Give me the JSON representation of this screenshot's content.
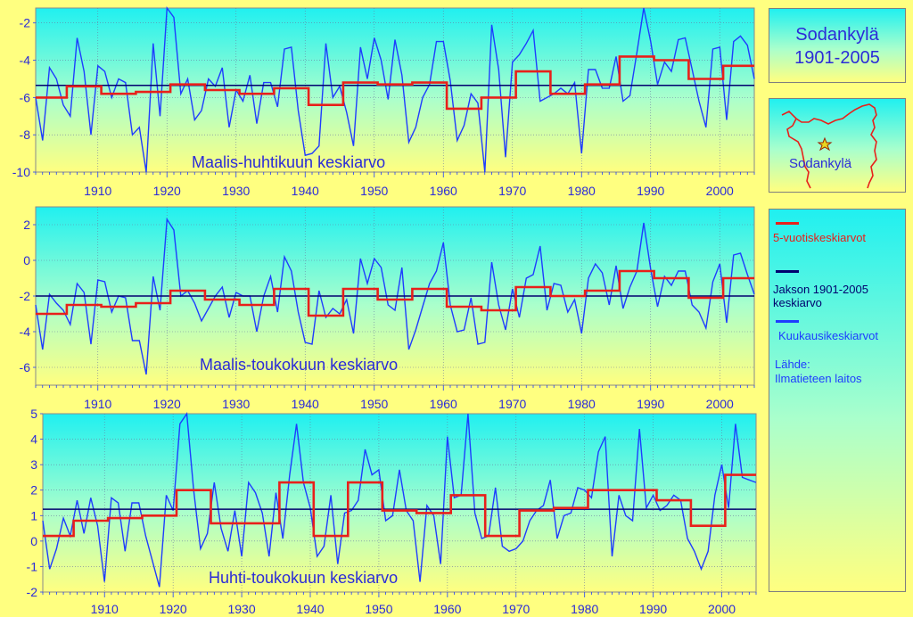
{
  "side": {
    "title_line1": "Sodankylä",
    "title_line2": "1901-2005",
    "map_label": "Sodankylä",
    "legend": [
      {
        "label": "5-vuotiskeskiarvot",
        "color": "#e8201a"
      },
      {
        "label": "Jakson  1901-2005 keskiarvo",
        "color": "#00006e"
      },
      {
        "label": "Kuukausikeskiarvot",
        "color": "#1e3cff"
      }
    ],
    "source_label": "Lähde:",
    "source_value": "Ilmatieteen laitos"
  },
  "colors": {
    "monthly": "#1e3cff",
    "five_year": "#e8201a",
    "period_mean": "#00006e",
    "label_text": "#2b2bd8"
  },
  "chart_data": [
    {
      "type": "line",
      "title": "Maalis-huhtikuun keskiarvo",
      "x": [
        1901,
        1902,
        1903,
        1904,
        1905,
        1906,
        1907,
        1908,
        1909,
        1910,
        1911,
        1912,
        1913,
        1914,
        1915,
        1916,
        1917,
        1918,
        1919,
        1920,
        1921,
        1922,
        1923,
        1924,
        1925,
        1926,
        1927,
        1928,
        1929,
        1930,
        1931,
        1932,
        1933,
        1934,
        1935,
        1936,
        1937,
        1938,
        1939,
        1940,
        1941,
        1942,
        1943,
        1944,
        1945,
        1946,
        1947,
        1948,
        1949,
        1950,
        1951,
        1952,
        1953,
        1954,
        1955,
        1956,
        1957,
        1958,
        1959,
        1960,
        1961,
        1962,
        1963,
        1964,
        1965,
        1966,
        1967,
        1968,
        1969,
        1970,
        1971,
        1972,
        1973,
        1974,
        1975,
        1976,
        1977,
        1978,
        1979,
        1980,
        1981,
        1982,
        1983,
        1984,
        1985,
        1986,
        1987,
        1988,
        1989,
        1990,
        1991,
        1992,
        1993,
        1994,
        1995,
        1996,
        1997,
        1998,
        1999,
        2000,
        2001,
        2002,
        2003,
        2004,
        2005
      ],
      "series": [
        {
          "name": "Kuukausikeskiarvot",
          "values": [
            -6.0,
            -8.3,
            -4.4,
            -5.0,
            -6.4,
            -7.0,
            -2.8,
            -4.6,
            -8.0,
            -4.3,
            -4.6,
            -6.0,
            -5.0,
            -5.2,
            -8.0,
            -7.6,
            -10.0,
            -3.1,
            -7.0,
            -1.0,
            -1.7,
            -5.8,
            -5.0,
            -7.2,
            -6.7,
            -5.0,
            -5.4,
            -4.4,
            -7.6,
            -5.6,
            -6.2,
            -4.8,
            -7.4,
            -5.2,
            -5.2,
            -6.5,
            -3.4,
            -3.3,
            -6.7,
            -9.1,
            -9.0,
            -8.6,
            -3.1,
            -6.0,
            -5.4,
            -6.8,
            -8.6,
            -3.3,
            -5.0,
            -2.8,
            -4.0,
            -6.1,
            -2.9,
            -4.8,
            -8.4,
            -7.6,
            -6.0,
            -5.3,
            -3.0,
            -3.0,
            -5.1,
            -8.3,
            -7.5,
            -5.8,
            -6.3,
            -10.0,
            -2.1,
            -4.5,
            -9.2,
            -4.1,
            -3.7,
            -3.1,
            -2.4,
            -6.2,
            -6.0,
            -5.8,
            -5.5,
            -5.8,
            -5.2,
            -9.0,
            -4.5,
            -4.5,
            -5.5,
            -5.5,
            -3.8,
            -6.2,
            -5.9,
            -3.6,
            -1.0,
            -3.0,
            -5.3,
            -4.1,
            -4.6,
            -2.9,
            -2.8,
            -4.5,
            -6.2,
            -7.6,
            -3.4,
            -3.3,
            -7.2,
            -3.0,
            -2.7,
            -3.2,
            -5.0
          ]
        },
        {
          "name": "5-vuotiskeskiarvot",
          "values": [
            -6.0,
            -6.0,
            -6.0,
            -6.0,
            -6.0,
            -5.4,
            -5.4,
            -5.4,
            -5.4,
            -5.4,
            -5.8,
            -5.8,
            -5.8,
            -5.8,
            -5.8,
            -5.7,
            -5.7,
            -5.7,
            -5.7,
            -5.7,
            -5.3,
            -5.3,
            -5.3,
            -5.3,
            -5.3,
            -5.6,
            -5.6,
            -5.6,
            -5.6,
            -5.6,
            -5.8,
            -5.8,
            -5.8,
            -5.8,
            -5.8,
            -5.5,
            -5.5,
            -5.5,
            -5.5,
            -5.5,
            -6.4,
            -6.4,
            -6.4,
            -6.4,
            -6.4,
            -5.2,
            -5.2,
            -5.2,
            -5.2,
            -5.2,
            -5.3,
            -5.3,
            -5.3,
            -5.3,
            -5.3,
            -5.2,
            -5.2,
            -5.2,
            -5.2,
            -5.2,
            -6.6,
            -6.6,
            -6.6,
            -6.6,
            -6.6,
            -6.0,
            -6.0,
            -6.0,
            -6.0,
            -6.0,
            -4.6,
            -4.6,
            -4.6,
            -4.6,
            -4.6,
            -5.8,
            -5.8,
            -5.8,
            -5.8,
            -5.8,
            -5.3,
            -5.3,
            -5.3,
            -5.3,
            -5.3,
            -3.8,
            -3.8,
            -3.8,
            -3.8,
            -3.8,
            -4.0,
            -4.0,
            -4.0,
            -4.0,
            -4.0,
            -5.0,
            -5.0,
            -5.0,
            -5.0,
            -5.0,
            -4.3,
            -4.3,
            -4.3,
            -4.3,
            -4.3
          ]
        }
      ],
      "mean": -5.35,
      "xlim": [
        1901,
        2005
      ],
      "ylim": [
        -10,
        -1.2
      ],
      "yticks": [
        -10,
        -8,
        -6,
        -4,
        -2
      ],
      "xticks": [
        1910,
        1920,
        1930,
        1940,
        1950,
        1960,
        1970,
        1980,
        1990,
        2000
      ]
    },
    {
      "type": "line",
      "title": "Maalis-toukokuun keskiarvo",
      "x": [
        1901,
        1902,
        1903,
        1904,
        1905,
        1906,
        1907,
        1908,
        1909,
        1910,
        1911,
        1912,
        1913,
        1914,
        1915,
        1916,
        1917,
        1918,
        1919,
        1920,
        1921,
        1922,
        1923,
        1924,
        1925,
        1926,
        1927,
        1928,
        1929,
        1930,
        1931,
        1932,
        1933,
        1934,
        1935,
        1936,
        1937,
        1938,
        1939,
        1940,
        1941,
        1942,
        1943,
        1944,
        1945,
        1946,
        1947,
        1948,
        1949,
        1950,
        1951,
        1952,
        1953,
        1954,
        1955,
        1956,
        1957,
        1958,
        1959,
        1960,
        1961,
        1962,
        1963,
        1964,
        1965,
        1966,
        1967,
        1968,
        1969,
        1970,
        1971,
        1972,
        1973,
        1974,
        1975,
        1976,
        1977,
        1978,
        1979,
        1980,
        1981,
        1982,
        1983,
        1984,
        1985,
        1986,
        1987,
        1988,
        1989,
        1990,
        1991,
        1992,
        1993,
        1994,
        1995,
        1996,
        1997,
        1998,
        1999,
        2000,
        2001,
        2002,
        2003,
        2004,
        2005
      ],
      "series": [
        {
          "name": "Kuukausikeskiarvot",
          "values": [
            -2.5,
            -5.0,
            -1.9,
            -2.4,
            -2.8,
            -3.6,
            -1.3,
            -1.8,
            -4.7,
            -1.1,
            -1.2,
            -2.9,
            -2.0,
            -2.1,
            -4.5,
            -4.5,
            -6.4,
            -0.9,
            -2.8,
            2.3,
            1.7,
            -2.0,
            -1.7,
            -2.4,
            -3.4,
            -2.7,
            -2.0,
            -1.5,
            -3.2,
            -1.8,
            -2.0,
            -2.0,
            -4.0,
            -2.0,
            -0.9,
            -2.9,
            0.2,
            -0.6,
            -2.9,
            -4.6,
            -4.7,
            -1.7,
            -3.2,
            -2.7,
            -3.0,
            -2.2,
            -4.1,
            0.1,
            -1.3,
            0.1,
            -0.4,
            -2.5,
            -2.8,
            -0.4,
            -5.0,
            -3.9,
            -2.6,
            -1.3,
            -0.6,
            1.0,
            -2.5,
            -4.0,
            -3.9,
            -2.1,
            -4.7,
            -4.6,
            -0.1,
            -2.5,
            -3.9,
            -1.6,
            -3.2,
            -1.0,
            -0.8,
            0.8,
            -2.8,
            -1.3,
            -1.4,
            -2.9,
            -2.2,
            -4.1,
            -1.0,
            -0.2,
            -0.7,
            -2.5,
            -0.3,
            -2.7,
            -1.5,
            -0.6,
            2.1,
            -0.5,
            -2.6,
            -0.9,
            -1.4,
            -0.6,
            -0.6,
            -2.5,
            -2.9,
            -3.8,
            -1.2,
            -0.2,
            -3.5,
            0.3,
            0.4,
            -0.8,
            -1.9
          ]
        },
        {
          "name": "5-vuotiskeskiarvot",
          "values": [
            -3.0,
            -3.0,
            -3.0,
            -3.0,
            -3.0,
            -2.5,
            -2.5,
            -2.5,
            -2.5,
            -2.5,
            -2.6,
            -2.6,
            -2.6,
            -2.6,
            -2.6,
            -2.4,
            -2.4,
            -2.4,
            -2.4,
            -2.4,
            -1.7,
            -1.7,
            -1.7,
            -1.7,
            -1.7,
            -2.2,
            -2.2,
            -2.2,
            -2.2,
            -2.2,
            -2.5,
            -2.5,
            -2.5,
            -2.5,
            -2.5,
            -1.6,
            -1.6,
            -1.6,
            -1.6,
            -1.6,
            -3.1,
            -3.1,
            -3.1,
            -3.1,
            -3.1,
            -1.6,
            -1.6,
            -1.6,
            -1.6,
            -1.6,
            -2.2,
            -2.2,
            -2.2,
            -2.2,
            -2.2,
            -1.6,
            -1.6,
            -1.6,
            -1.6,
            -1.6,
            -2.6,
            -2.6,
            -2.6,
            -2.6,
            -2.6,
            -2.8,
            -2.8,
            -2.8,
            -2.8,
            -2.8,
            -1.5,
            -1.5,
            -1.5,
            -1.5,
            -1.5,
            -2.0,
            -2.0,
            -2.0,
            -2.0,
            -2.0,
            -1.7,
            -1.7,
            -1.7,
            -1.7,
            -1.7,
            -0.6,
            -0.6,
            -0.6,
            -0.6,
            -0.6,
            -1.0,
            -1.0,
            -1.0,
            -1.0,
            -1.0,
            -2.1,
            -2.1,
            -2.1,
            -2.1,
            -2.1,
            -1.0,
            -1.0,
            -1.0,
            -1.0,
            -1.0
          ]
        }
      ],
      "mean": -2.0,
      "xlim": [
        1901,
        2005
      ],
      "ylim": [
        -7,
        3
      ],
      "yticks": [
        -6,
        -4,
        -2,
        0,
        2
      ],
      "xticks": [
        1910,
        1920,
        1930,
        1940,
        1950,
        1960,
        1970,
        1980,
        1990,
        2000
      ]
    },
    {
      "type": "line",
      "title": "Huhti-toukokuun keskiarvo",
      "x": [
        1901,
        1902,
        1903,
        1904,
        1905,
        1906,
        1907,
        1908,
        1909,
        1910,
        1911,
        1912,
        1913,
        1914,
        1915,
        1916,
        1917,
        1918,
        1919,
        1920,
        1921,
        1922,
        1923,
        1924,
        1925,
        1926,
        1927,
        1928,
        1929,
        1930,
        1931,
        1932,
        1933,
        1934,
        1935,
        1936,
        1937,
        1938,
        1939,
        1940,
        1941,
        1942,
        1943,
        1944,
        1945,
        1946,
        1947,
        1948,
        1949,
        1950,
        1951,
        1952,
        1953,
        1954,
        1955,
        1956,
        1957,
        1958,
        1959,
        1960,
        1961,
        1962,
        1963,
        1964,
        1965,
        1966,
        1967,
        1968,
        1969,
        1970,
        1971,
        1972,
        1973,
        1974,
        1975,
        1976,
        1977,
        1978,
        1979,
        1980,
        1981,
        1982,
        1983,
        1984,
        1985,
        1986,
        1987,
        1988,
        1989,
        1990,
        1991,
        1992,
        1993,
        1994,
        1995,
        1996,
        1997,
        1998,
        1999,
        2000,
        2001,
        2002,
        2003,
        2004,
        2005
      ],
      "series": [
        {
          "name": "Kuukausikeskiarvot",
          "values": [
            0.8,
            -1.1,
            -0.3,
            0.9,
            0.2,
            1.6,
            0.3,
            1.7,
            0.6,
            -1.6,
            1.7,
            1.5,
            -0.4,
            1.5,
            1.5,
            0.2,
            -0.8,
            -1.8,
            1.8,
            1.2,
            4.6,
            5.1,
            2.0,
            -0.3,
            0.3,
            2.3,
            0.5,
            -0.4,
            1.2,
            -0.6,
            2.3,
            1.9,
            1.1,
            -0.6,
            1.9,
            0.1,
            2.6,
            4.6,
            2.3,
            1.3,
            -0.6,
            -0.2,
            1.8,
            -0.9,
            1.1,
            1.2,
            1.6,
            3.6,
            2.6,
            2.8,
            0.8,
            1.0,
            2.8,
            1.2,
            0.8,
            -1.6,
            1.4,
            1.0,
            -0.9,
            4.1,
            1.7,
            1.8,
            5.0,
            1.1,
            0.1,
            0.2,
            2.1,
            -0.2,
            -0.4,
            -0.3,
            0.0,
            0.8,
            1.2,
            1.4,
            2.4,
            0.1,
            1.0,
            1.1,
            2.1,
            2.0,
            1.7,
            3.5,
            4.1,
            -0.6,
            1.8,
            1.0,
            0.8,
            4.4,
            1.3,
            1.8,
            1.2,
            1.4,
            1.8,
            1.6,
            0.1,
            -0.4,
            -1.1,
            -0.4,
            1.8,
            3.0,
            1.3,
            4.6,
            2.5,
            2.4,
            2.3
          ]
        },
        {
          "name": "5-vuotiskeskiarvot",
          "values": [
            0.2,
            0.2,
            0.2,
            0.2,
            0.2,
            0.8,
            0.8,
            0.8,
            0.8,
            0.8,
            0.9,
            0.9,
            0.9,
            0.9,
            0.9,
            1.0,
            1.0,
            1.0,
            1.0,
            1.0,
            2.0,
            2.0,
            2.0,
            2.0,
            2.0,
            0.7,
            0.7,
            0.7,
            0.7,
            0.7,
            0.7,
            0.7,
            0.7,
            0.7,
            0.7,
            2.3,
            2.3,
            2.3,
            2.3,
            2.3,
            0.2,
            0.2,
            0.2,
            0.2,
            0.2,
            2.3,
            2.3,
            2.3,
            2.3,
            2.3,
            1.2,
            1.2,
            1.2,
            1.2,
            1.2,
            1.1,
            1.1,
            1.1,
            1.1,
            1.1,
            1.8,
            1.8,
            1.8,
            1.8,
            1.8,
            0.2,
            0.2,
            0.2,
            0.2,
            0.2,
            1.2,
            1.2,
            1.2,
            1.2,
            1.2,
            1.3,
            1.3,
            1.3,
            1.3,
            1.3,
            2.0,
            2.0,
            2.0,
            2.0,
            2.0,
            2.0,
            2.0,
            2.0,
            2.0,
            2.0,
            1.6,
            1.6,
            1.6,
            1.6,
            1.6,
            0.6,
            0.6,
            0.6,
            0.6,
            0.6,
            2.6,
            2.6,
            2.6,
            2.6,
            2.6
          ]
        }
      ],
      "mean": 1.25,
      "xlim": [
        1901,
        2005
      ],
      "ylim": [
        -2,
        5
      ],
      "yticks": [
        -2,
        -1,
        0,
        1,
        2,
        3,
        4,
        5
      ],
      "xticks": [
        1910,
        1920,
        1930,
        1940,
        1950,
        1960,
        1970,
        1980,
        1990,
        2000
      ]
    }
  ]
}
